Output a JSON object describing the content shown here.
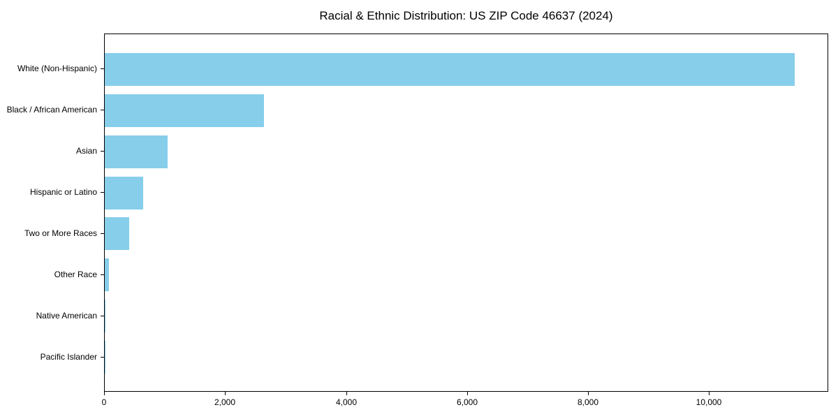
{
  "chart_data": {
    "type": "bar",
    "orientation": "horizontal",
    "title": "Racial & Ethnic Distribution: US ZIP Code 46637 (2024)",
    "categories": [
      "White (Non-Hispanic)",
      "Black / African American",
      "Asian",
      "Hispanic or Latino",
      "Two or More Races",
      "Other Race",
      "Native American",
      "Pacific Islander"
    ],
    "values": [
      11400,
      2630,
      1040,
      635,
      405,
      65,
      15,
      3
    ],
    "xlabel": "",
    "ylabel": "",
    "xlim": [
      0,
      11970
    ],
    "x_ticks": [
      0,
      2000,
      4000,
      6000,
      8000,
      10000
    ],
    "x_tick_labels": [
      "0",
      "2,000",
      "4,000",
      "6,000",
      "8,000",
      "10,000"
    ],
    "bar_color": "#87CEEB",
    "spine_color": "#000000",
    "grid": false,
    "legend": null,
    "background_color": "#ffffff"
  }
}
